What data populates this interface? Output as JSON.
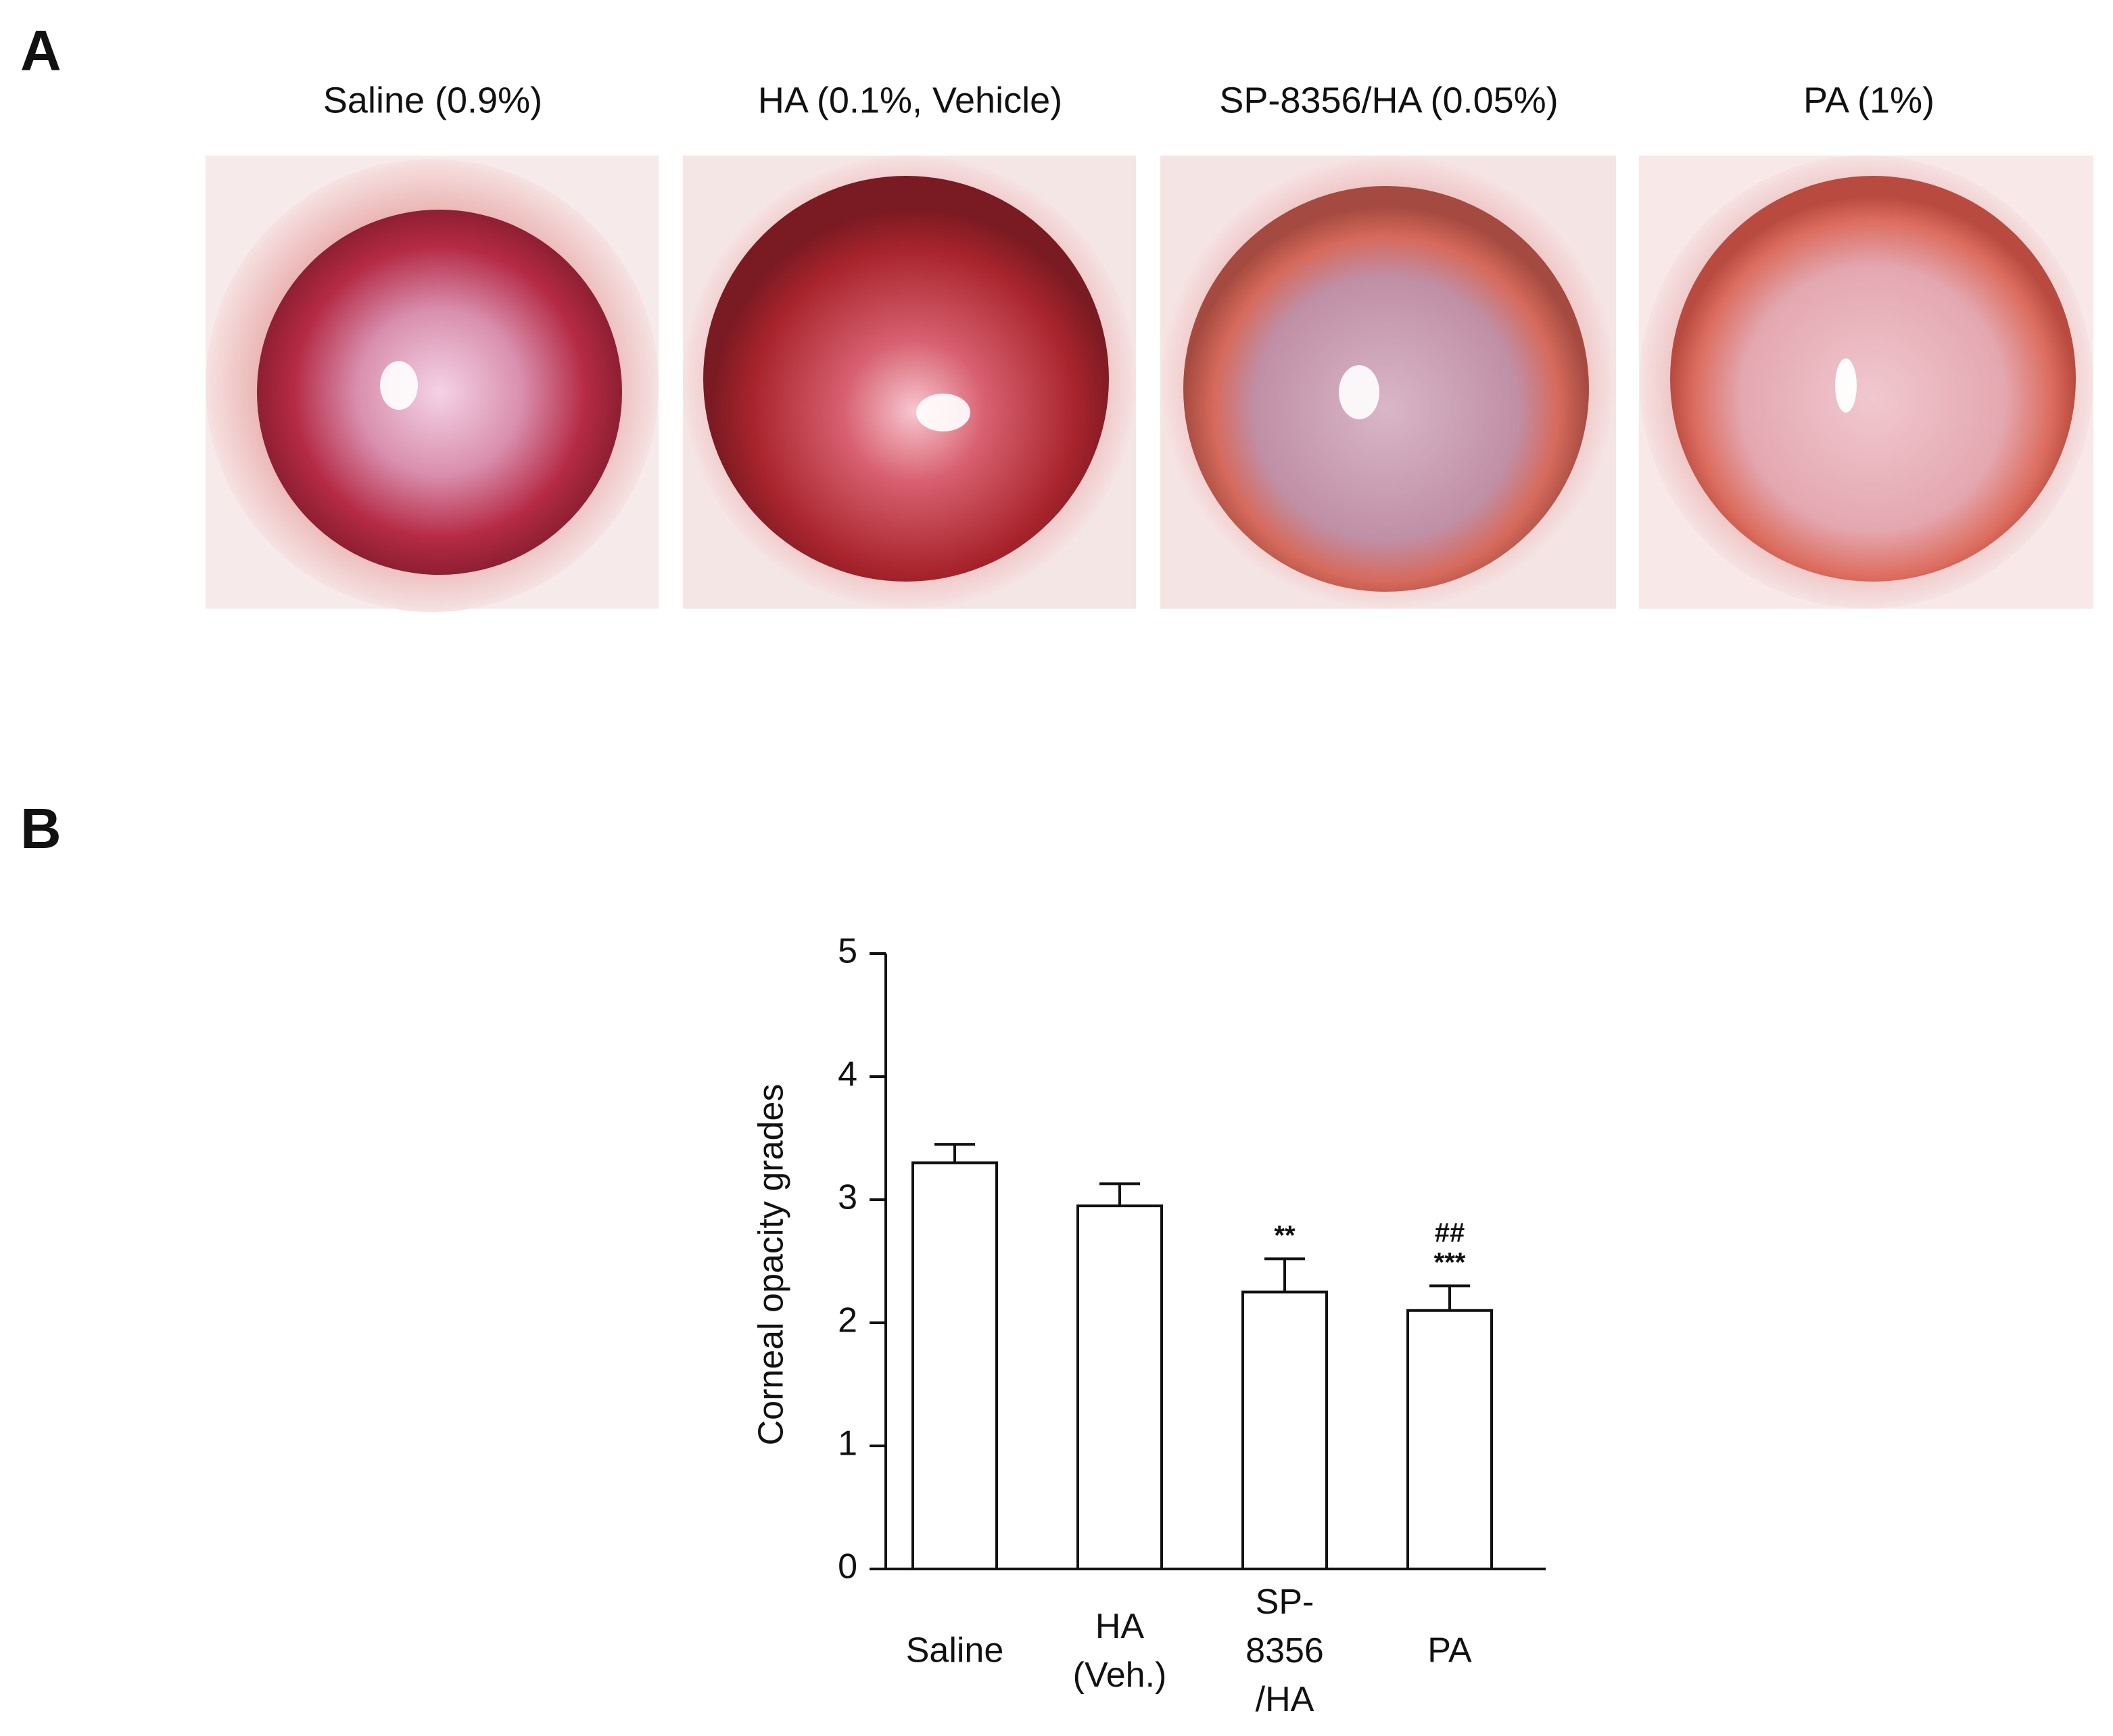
{
  "panels": [
    {
      "label": "A",
      "images": [
        "Saline (0.9%)",
        "HA (0.1%, Vehicle)",
        "SP-8356/HA (0.05%)",
        "PA (1%)"
      ]
    },
    {
      "label": "B"
    }
  ],
  "chart_data": {
    "type": "bar",
    "y_label": "Corneal opacity grades",
    "categories": [
      "Saline",
      "HA\n(Veh.)",
      "SP-\n8356\n/HA",
      "PA"
    ],
    "values": [
      3.3,
      2.95,
      2.25,
      2.1
    ],
    "errors": [
      0.15,
      0.18,
      0.27,
      0.2
    ],
    "color": "#ffffff",
    "ylim": [
      0,
      5
    ],
    "yticks": [
      0,
      1,
      2,
      3,
      4,
      5
    ],
    "annotations": [
      {
        "category": "SP-\n8356\n/HA",
        "text": "**"
      },
      {
        "category": "PA",
        "text": "***"
      },
      {
        "category": "PA",
        "text": "##"
      }
    ]
  }
}
